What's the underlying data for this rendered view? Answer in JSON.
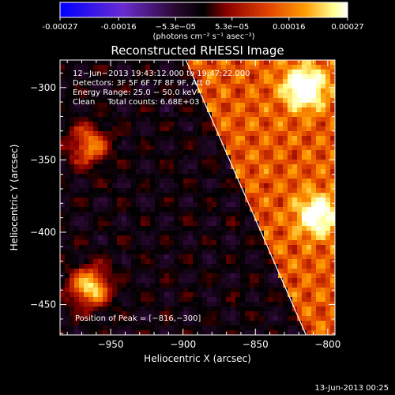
{
  "colorbar": {
    "tick_labels": [
      "-0.00027",
      "-0.00016",
      "−5.3e−05",
      "5.3e−05",
      "0.00016",
      "0.00027"
    ],
    "tick_values": [
      -0.00027,
      -0.00016,
      -5.3e-05,
      5.3e-05,
      0.00016,
      0.00027
    ],
    "range": [
      -0.00027,
      0.00027
    ],
    "unit_label": "(photons cm⁻² s⁻¹ asec⁻²)"
  },
  "chart_data": {
    "type": "heatmap",
    "title": "Reconstructed RHESSI Image",
    "xlabel": "Heliocentric X (arcsec)",
    "ylabel": "Heliocentric Y (arcsec)",
    "xlim": [
      -985,
      -795
    ],
    "ylim": [
      -471,
      -281
    ],
    "x_ticks": [
      -950,
      -900,
      -850,
      -800
    ],
    "y_ticks": [
      -300,
      -350,
      -400,
      -450
    ],
    "x_tick_labels": [
      "−950",
      "−900",
      "−850",
      "−800"
    ],
    "y_tick_labels": [
      "−300",
      "−350",
      "−400",
      "−450"
    ],
    "annotations": [
      "12−Jun−2013 19:43:12.000 to 19:47:22.000",
      "Detectors: 3F 5F 6F 7F 8F 9F, Att 0",
      "Energy Range: 25.0 − 50.0 keV",
      "Clean     Total counts: 6.68E+03"
    ],
    "peak_label": "Position of Peak = [−816,−300]",
    "peak": [
      -816,
      -300
    ],
    "limb_line": [
      [
        -898,
        -281
      ],
      [
        -815,
        -471
      ]
    ],
    "hot_spots": [
      {
        "x": -964,
        "y": -438,
        "value": 0.00027
      },
      {
        "x": -816,
        "y": -300,
        "value": 0.00027
      },
      {
        "x": -807,
        "y": -388,
        "value": 0.00022
      },
      {
        "x": -965,
        "y": -340,
        "value": 0.0002
      }
    ],
    "colormap": [
      "#0000ff",
      "#6a2bd0",
      "#2a0830",
      "#000000",
      "#8a0000",
      "#e04000",
      "#ff9a00",
      "#ffff90",
      "#ffffff"
    ]
  },
  "footer": {
    "timestamp": "13-Jun-2013 00:25"
  }
}
